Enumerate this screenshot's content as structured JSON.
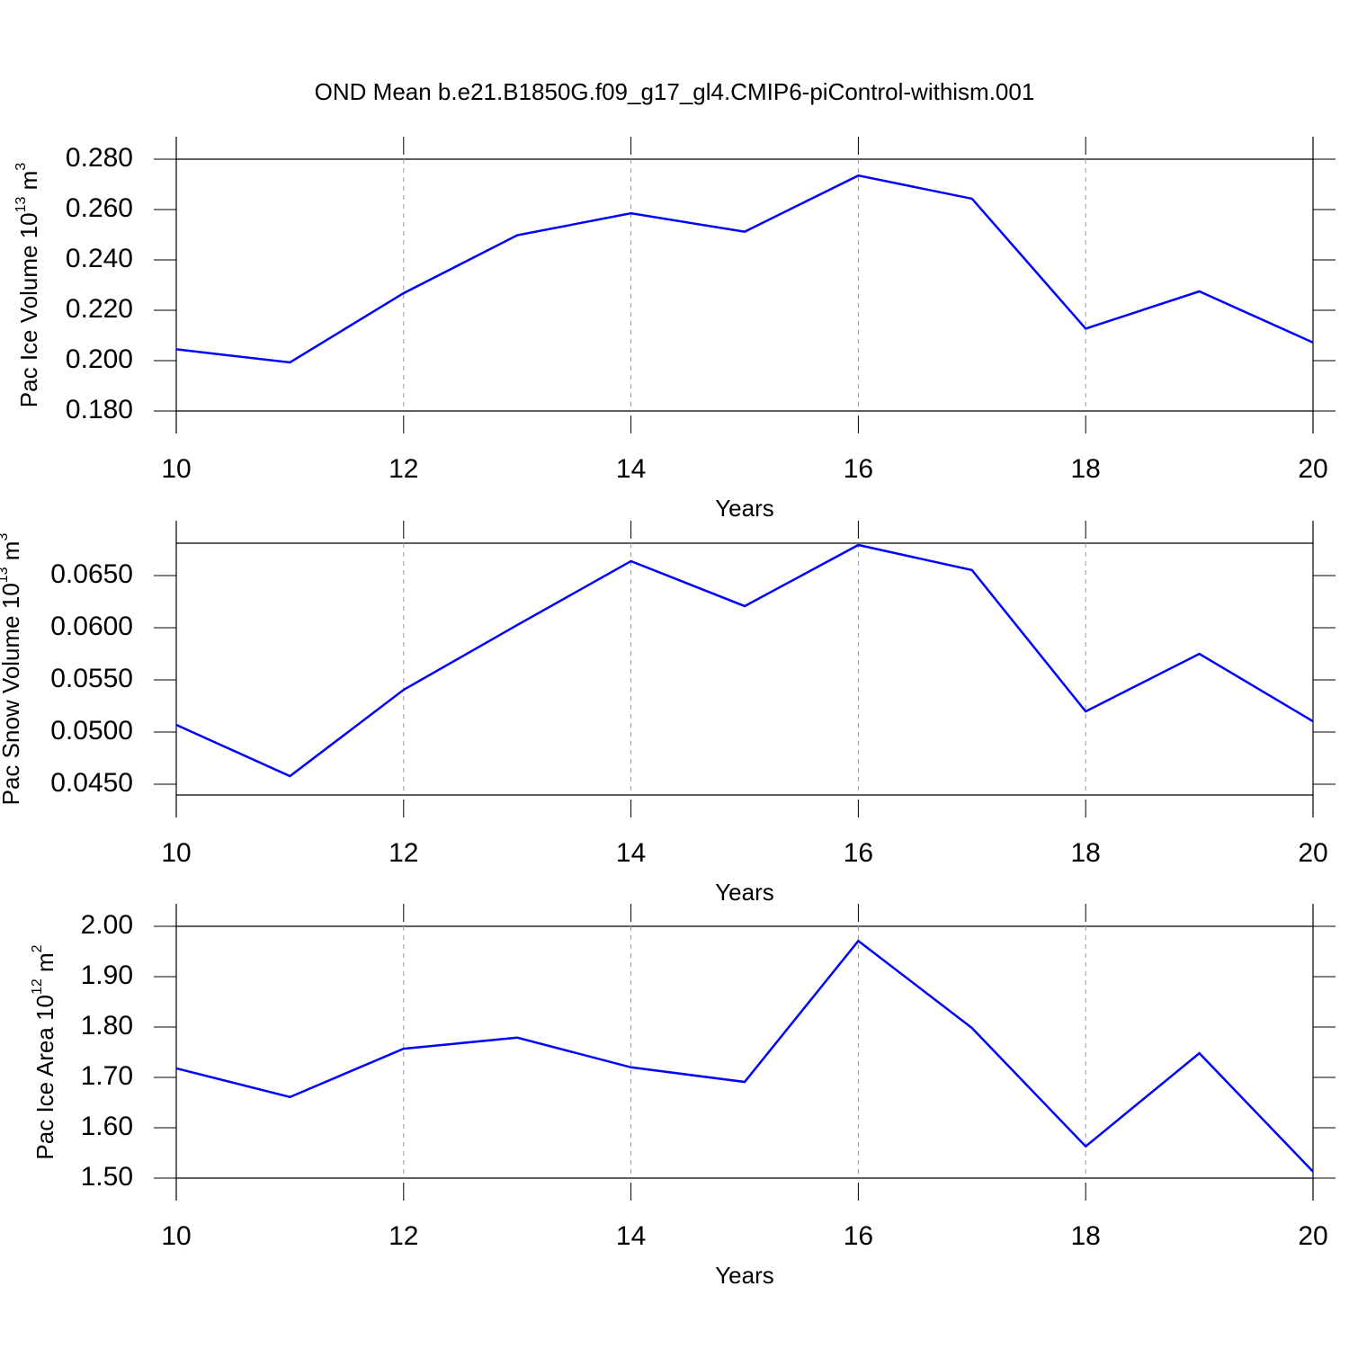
{
  "title": "OND Mean b.e21.B1850G.f09_g17_gl4.CMIP6-piControl-withism.001",
  "chart_data": [
    {
      "type": "line",
      "ylabel": [
        "Pac Ice Volume 10",
        "13",
        " m",
        "3"
      ],
      "xlabel": "Years",
      "x": [
        10,
        11,
        12,
        13,
        14,
        15,
        16,
        17,
        18,
        19,
        20
      ],
      "series": [
        {
          "color": "#0000ff",
          "values": [
            0.2045,
            0.1993,
            0.2268,
            0.2498,
            0.2585,
            0.2512,
            0.2735,
            0.2643,
            0.2127,
            0.2275,
            0.2072
          ]
        }
      ],
      "xlim": [
        10,
        20
      ],
      "xticks": [
        10,
        12,
        14,
        16,
        18,
        20
      ],
      "ylim": [
        0.18,
        0.28
      ],
      "yticks": [
        {
          "value": 0.18,
          "label": "0.180"
        },
        {
          "value": 0.2,
          "label": "0.200"
        },
        {
          "value": 0.22,
          "label": "0.220"
        },
        {
          "value": 0.24,
          "label": "0.240"
        },
        {
          "value": 0.26,
          "label": "0.260"
        },
        {
          "value": 0.28,
          "label": "0.280"
        }
      ],
      "grid": true
    },
    {
      "type": "line",
      "ylabel": [
        "Pac Snow Volume 10",
        "13",
        " m",
        "3"
      ],
      "xlabel": "Years",
      "x": [
        10,
        11,
        12,
        13,
        14,
        15,
        16,
        17,
        18,
        19,
        20
      ],
      "series": [
        {
          "color": "#0000ff",
          "values": [
            0.05069,
            0.04578,
            0.05405,
            0.06026,
            0.06638,
            0.06207,
            0.06793,
            0.06552,
            0.05198,
            0.0575,
            0.05103
          ]
        }
      ],
      "xlim": [
        10,
        20
      ],
      "xticks": [
        10,
        12,
        14,
        16,
        18,
        20
      ],
      "ylim": [
        0.04397,
        0.0681
      ],
      "yticks": [
        {
          "value": 0.045,
          "label": "0.0450"
        },
        {
          "value": 0.05,
          "label": "0.0500"
        },
        {
          "value": 0.055,
          "label": "0.0550"
        },
        {
          "value": 0.06,
          "label": "0.0600"
        },
        {
          "value": 0.065,
          "label": "0.0650"
        }
      ],
      "grid": true
    },
    {
      "type": "line",
      "ylabel": [
        "Pac Ice Area 10",
        "12",
        " m",
        "2"
      ],
      "xlabel": "Years",
      "x": [
        10,
        11,
        12,
        13,
        14,
        15,
        16,
        17,
        18,
        19,
        20
      ],
      "series": [
        {
          "color": "#0000ff",
          "values": [
            1.718,
            1.661,
            1.757,
            1.779,
            1.72,
            1.691,
            1.971,
            1.798,
            1.563,
            1.748,
            1.513
          ]
        }
      ],
      "xlim": [
        10,
        20
      ],
      "xticks": [
        10,
        12,
        14,
        16,
        18,
        20
      ],
      "ylim": [
        1.5,
        2.0
      ],
      "yticks": [
        {
          "value": 1.5,
          "label": "1.50"
        },
        {
          "value": 1.6,
          "label": "1.60"
        },
        {
          "value": 1.7,
          "label": "1.70"
        },
        {
          "value": 1.8,
          "label": "1.80"
        },
        {
          "value": 1.9,
          "label": "1.90"
        },
        {
          "value": 2.0,
          "label": "2.00"
        }
      ],
      "grid": true
    }
  ]
}
